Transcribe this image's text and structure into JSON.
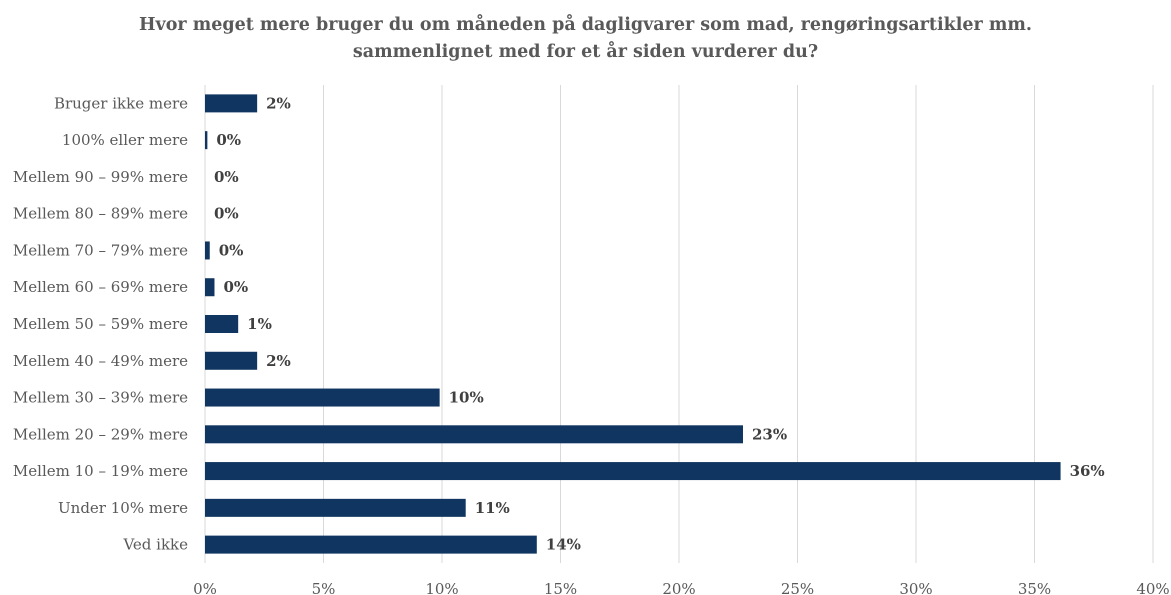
{
  "chart_data": {
    "type": "bar",
    "orientation": "horizontal",
    "title_line1": "Hvor meget mere bruger du om måneden på dagligvarer som mad, rengøringsartikler mm.",
    "title_line2": "sammenlignet med for et år siden vurderer du?",
    "categories": [
      "Bruger ikke mere",
      "100% eller mere",
      "Mellem 90 – 99% mere",
      "Mellem 80 – 89% mere",
      "Mellem 70 – 79% mere",
      "Mellem 60 – 69% mere",
      "Mellem 50 – 59% mere",
      "Mellem 40 – 49% mere",
      "Mellem 30 – 39% mere",
      "Mellem 20 – 29% mere",
      "Mellem 10 – 19% mere",
      "Under 10% mere",
      "Ved ikke"
    ],
    "values": [
      2.2,
      0.1,
      0,
      0,
      0.2,
      0.4,
      1.4,
      2.2,
      9.9,
      22.7,
      36.1,
      11.0,
      14.0
    ],
    "data_labels": [
      "2%",
      "0%",
      "0%",
      "0%",
      "0%",
      "0%",
      "1%",
      "2%",
      "10%",
      "23%",
      "36%",
      "11%",
      "14%"
    ],
    "xlim": [
      0,
      40
    ],
    "xticks": [
      0,
      5,
      10,
      15,
      20,
      25,
      30,
      35,
      40
    ],
    "xtick_labels": [
      "0%",
      "5%",
      "10%",
      "15%",
      "20%",
      "25%",
      "30%",
      "35%",
      "40%"
    ],
    "grid": true,
    "bar_color": "#0f3560"
  }
}
